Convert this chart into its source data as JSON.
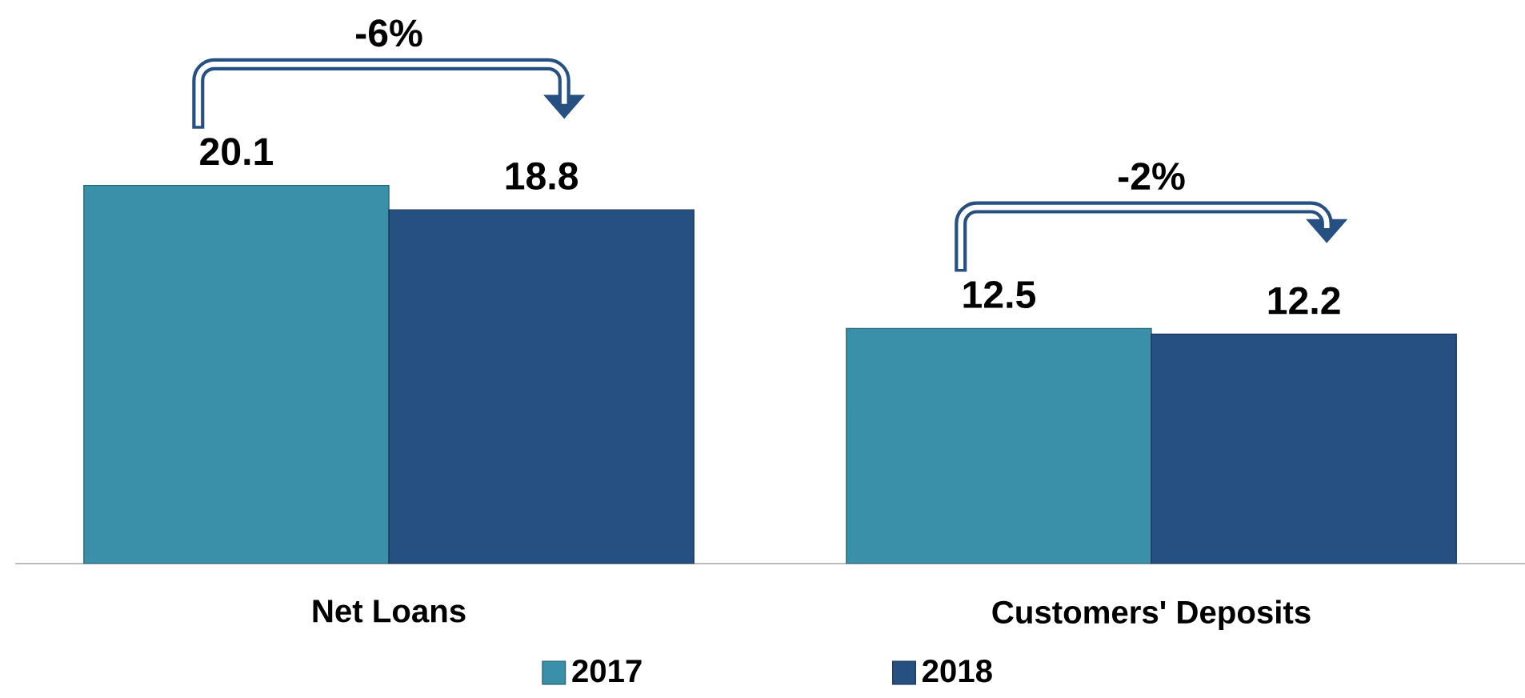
{
  "chart_data": {
    "type": "bar",
    "categories": [
      "Net Loans",
      "Customers' Deposits"
    ],
    "series": [
      {
        "name": "2017",
        "color": "#3a90a8",
        "values": [
          20.1,
          12.5
        ]
      },
      {
        "name": "2018",
        "color": "#264f82",
        "values": [
          18.8,
          12.2
        ]
      }
    ],
    "data_labels": true,
    "legend": "bottom",
    "annotations": [
      "-6%",
      "-2%"
    ]
  }
}
